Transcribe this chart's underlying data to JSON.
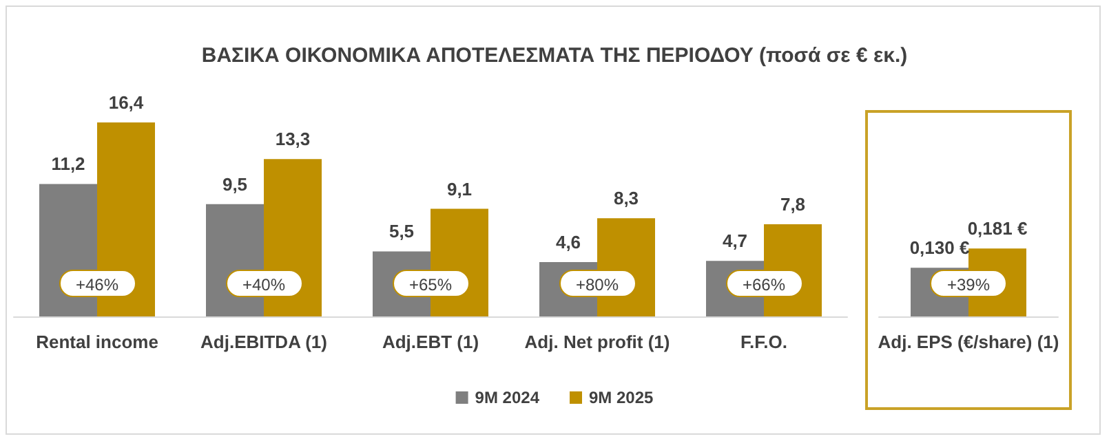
{
  "chart_data": [
    {
      "type": "bar",
      "title": "ΒΑΣΙΚΑ ΟΙΚΟΝΟΜΙΚΑ ΑΠΟΤΕΛΕΣΜΑΤΑ ΤΗΣ ΠΕΡΙΟΔΟΥ (ποσά σε € εκ.)",
      "categories": [
        "Rental income",
        "Adj.EBITDA (1)",
        "Adj.EBT (1)",
        "Adj. Net profit (1)",
        "F.F.O."
      ],
      "series": [
        {
          "name": "9M 2024",
          "color": "#7f7f7f",
          "values": [
            11.2,
            9.5,
            5.5,
            4.6,
            4.7
          ],
          "value_labels": [
            "11,2",
            "9,5",
            "5,5",
            "4,6",
            "4,7"
          ]
        },
        {
          "name": "9M 2025",
          "color": "#bf9000",
          "values": [
            16.4,
            13.3,
            9.1,
            8.3,
            7.8
          ],
          "value_labels": [
            "16,4",
            "13,3",
            "9,1",
            "8,3",
            "7,8"
          ]
        }
      ],
      "annotations": [
        {
          "text": "+46%",
          "x": "Rental income"
        },
        {
          "text": "+40%",
          "x": "Adj.EBITDA (1)"
        },
        {
          "text": "+65%",
          "x": "Adj.EBT (1)"
        },
        {
          "text": "+80%",
          "x": "Adj. Net profit (1)"
        },
        {
          "text": "+66%",
          "x": "F.F.O."
        }
      ],
      "legend": "bottom"
    },
    {
      "type": "bar",
      "categories": [
        "Adj. EPS (€/share) (1)"
      ],
      "series": [
        {
          "color": "#7f7f7f",
          "values": [
            0.13
          ],
          "value_labels": [
            "0,130 €"
          ]
        },
        {
          "color": "#bf9000",
          "values": [
            0.181
          ],
          "value_labels": [
            "0,181 €"
          ]
        }
      ],
      "annotations": [
        {
          "text": "+39%",
          "x": "Adj. EPS (€/share) (1)"
        }
      ]
    }
  ]
}
